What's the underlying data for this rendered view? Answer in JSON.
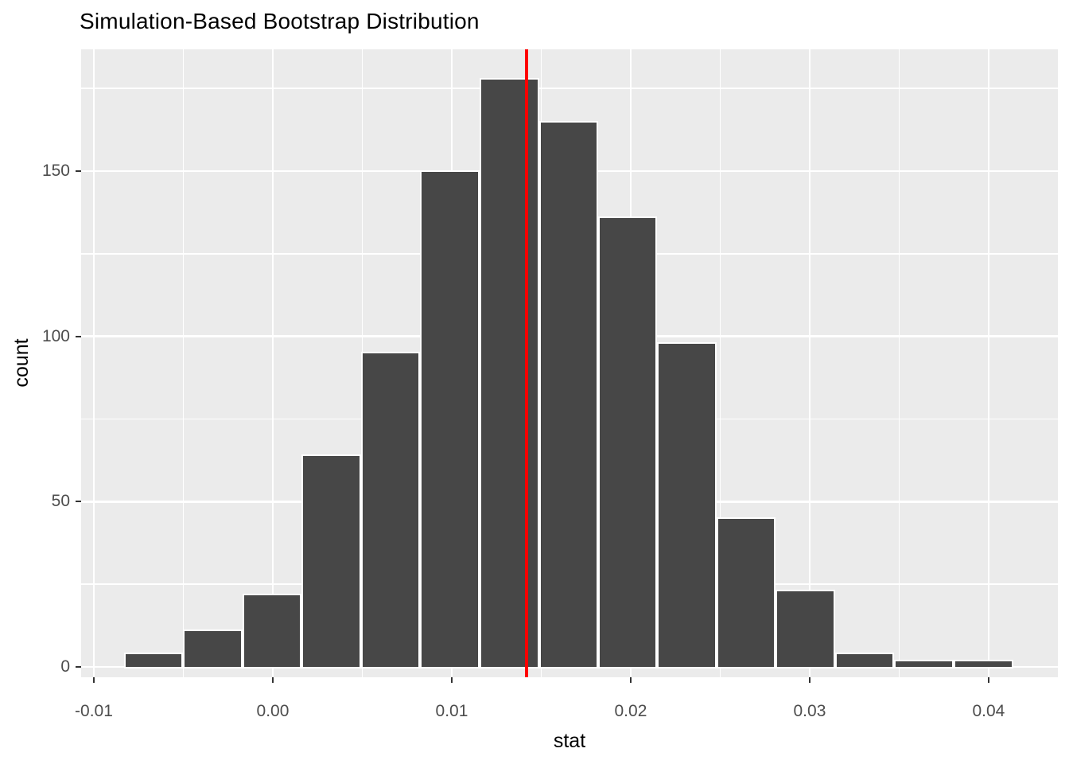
{
  "chart_data": {
    "type": "bar",
    "subtype": "histogram",
    "title": "Simulation-Based Bootstrap Distribution",
    "xlabel": "stat",
    "ylabel": "count",
    "bin_edges": [
      -0.00831,
      -0.005,
      -0.00169,
      0.00162,
      0.00493,
      0.00824,
      0.01156,
      0.01487,
      0.01818,
      0.02149,
      0.0248,
      0.02811,
      0.03142,
      0.03473,
      0.03805,
      0.04136
    ],
    "counts": [
      4,
      11,
      22,
      64,
      95,
      150,
      178,
      165,
      136,
      98,
      45,
      23,
      4,
      2,
      2
    ],
    "x_ticks": {
      "values": [
        -0.01,
        0.0,
        0.01,
        0.02,
        0.03,
        0.04
      ],
      "labels": [
        "-0.01",
        "0.00",
        "0.01",
        "0.02",
        "0.03",
        "0.04"
      ]
    },
    "x_minor_ticks": [
      -0.005,
      0.005,
      0.015,
      0.025,
      0.035
    ],
    "y_ticks": {
      "values": [
        0,
        50,
        100,
        150
      ],
      "labels": [
        "0",
        "50",
        "100",
        "150"
      ]
    },
    "y_minor_ticks": [
      25,
      75,
      125,
      175
    ],
    "xlim": [
      -0.01071,
      0.04387
    ],
    "ylim": [
      -3.13,
      186.84
    ],
    "vline": {
      "value": 0.0142,
      "color": "#FF0000"
    },
    "grid": true,
    "legend": "none",
    "colors": {
      "panel_bg": "#EBEBEB",
      "bar_fill": "#474747",
      "bar_stroke": "#FFFFFF",
      "gridline": "#FFFFFF",
      "tick_mark": "#333333",
      "tick_label": "#4D4D4D",
      "axis_title": "#000000",
      "title": "#000000"
    }
  }
}
